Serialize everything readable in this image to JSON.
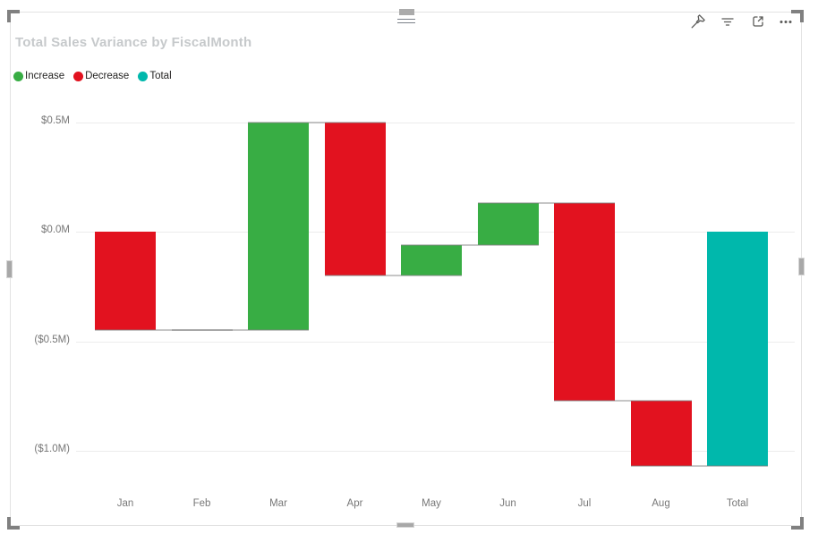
{
  "title": "Total Sales Variance by FiscalMonth",
  "visual_header": {
    "icons": [
      {
        "name": "pin-icon"
      },
      {
        "name": "filter-icon"
      },
      {
        "name": "focus-mode-icon"
      },
      {
        "name": "more-options-icon"
      }
    ]
  },
  "legend": {
    "position": "top-left",
    "items": [
      {
        "label": "Increase",
        "color": "#38AD44"
      },
      {
        "label": "Decrease",
        "color": "#E2121F"
      },
      {
        "label": "Total",
        "color": "#00B8AC"
      }
    ]
  },
  "chart_data": {
    "type": "waterfall",
    "title": "Total Sales Variance by FiscalMonth",
    "categories": [
      "Jan",
      "Feb",
      "Mar",
      "Apr",
      "May",
      "Jun",
      "Jul",
      "Aug",
      "Total"
    ],
    "changes_musd": [
      -0.45,
      0.0,
      0.95,
      -0.7,
      0.14,
      0.19,
      -0.9,
      -0.3,
      null
    ],
    "cumulative_musd": [
      -0.45,
      -0.45,
      0.5,
      -0.2,
      -0.06,
      0.13,
      -0.77,
      -1.07,
      -1.07
    ],
    "total_musd": -1.07,
    "y_axis": {
      "ticks": [
        {
          "label": "$0.5M",
          "value": 0.5
        },
        {
          "label": "$0.0M",
          "value": 0.0
        },
        {
          "label": "($0.5M)",
          "value": -0.5
        },
        {
          "label": "($1.0M)",
          "value": -1.0
        }
      ],
      "range_musd": [
        -1.2,
        0.6
      ]
    },
    "colors": {
      "increase": "#38AD44",
      "decrease": "#E2121F",
      "total": "#00B8AC",
      "connector": "#bdbdbd",
      "gridline": "#ececec"
    },
    "grid": "horizontal",
    "legend_position": "top-left"
  }
}
